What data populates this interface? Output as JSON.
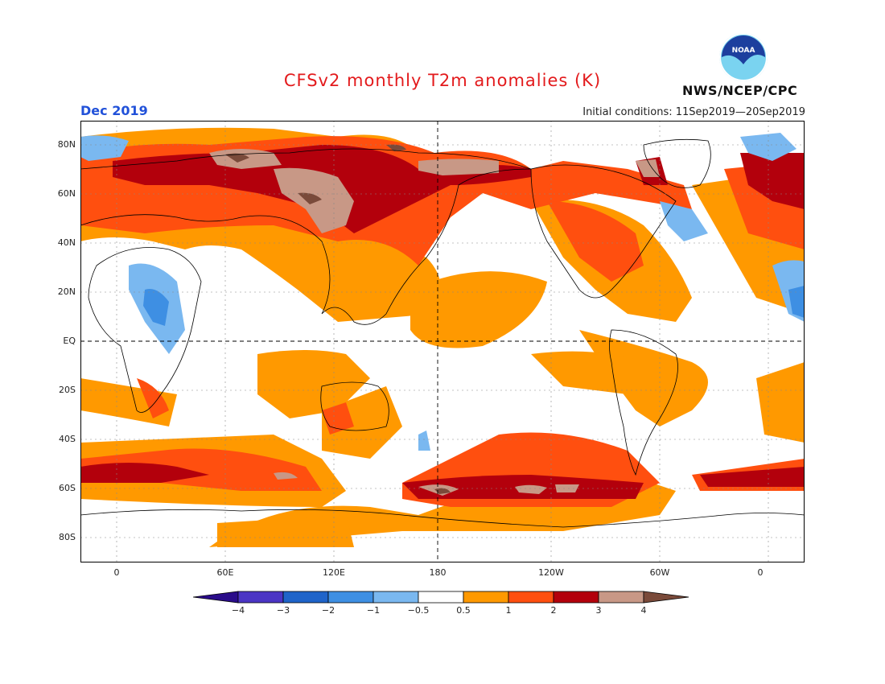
{
  "header": {
    "title": "CFSv2 monthly T2m anomalies (K)",
    "valid_month": "Dec 2019",
    "initial_conditions": "Initial conditions: 11Sep2019—20Sep2019",
    "agency": "NWS/NCEP/CPC",
    "logo_text": "NOAA"
  },
  "map": {
    "projection": "cylindrical equidistant",
    "lon_range": [
      -20,
      380
    ],
    "lat_range": [
      -90,
      90
    ],
    "lat_labels": [
      "80N",
      "60N",
      "40N",
      "20N",
      "EQ",
      "20S",
      "40S",
      "60S",
      "80S"
    ],
    "lat_values": [
      80,
      60,
      40,
      20,
      0,
      -20,
      -40,
      -60,
      -80
    ],
    "lon_labels": [
      "0",
      "60E",
      "120E",
      "180",
      "120W",
      "60W",
      "0"
    ],
    "lon_values": [
      0,
      60,
      120,
      180,
      240,
      300,
      360
    ],
    "dashed_reference_lines": [
      "EQ",
      "180"
    ]
  },
  "legend": {
    "tick_labels": [
      "−4",
      "−3",
      "−2",
      "−1",
      "−0.5",
      "0.5",
      "1",
      "2",
      "3",
      "4"
    ],
    "colors": [
      "#2a0c8a",
      "#4b35c4",
      "#1f64c9",
      "#3e8fe3",
      "#7ab8f0",
      "#ffffff",
      "#ff9900",
      "#ff4f0f",
      "#b3000c",
      "#c89886",
      "#7a4a3a"
    ]
  },
  "colors": {
    "weak_warm": "#ff9900",
    "moderate_warm": "#ff4f0f",
    "strong_warm": "#b3000c",
    "very_strong_warm": "#c89886",
    "extreme_warm": "#7a4a3a",
    "weak_cold": "#7ab8f0",
    "moderate_cold": "#3e8fe3"
  }
}
